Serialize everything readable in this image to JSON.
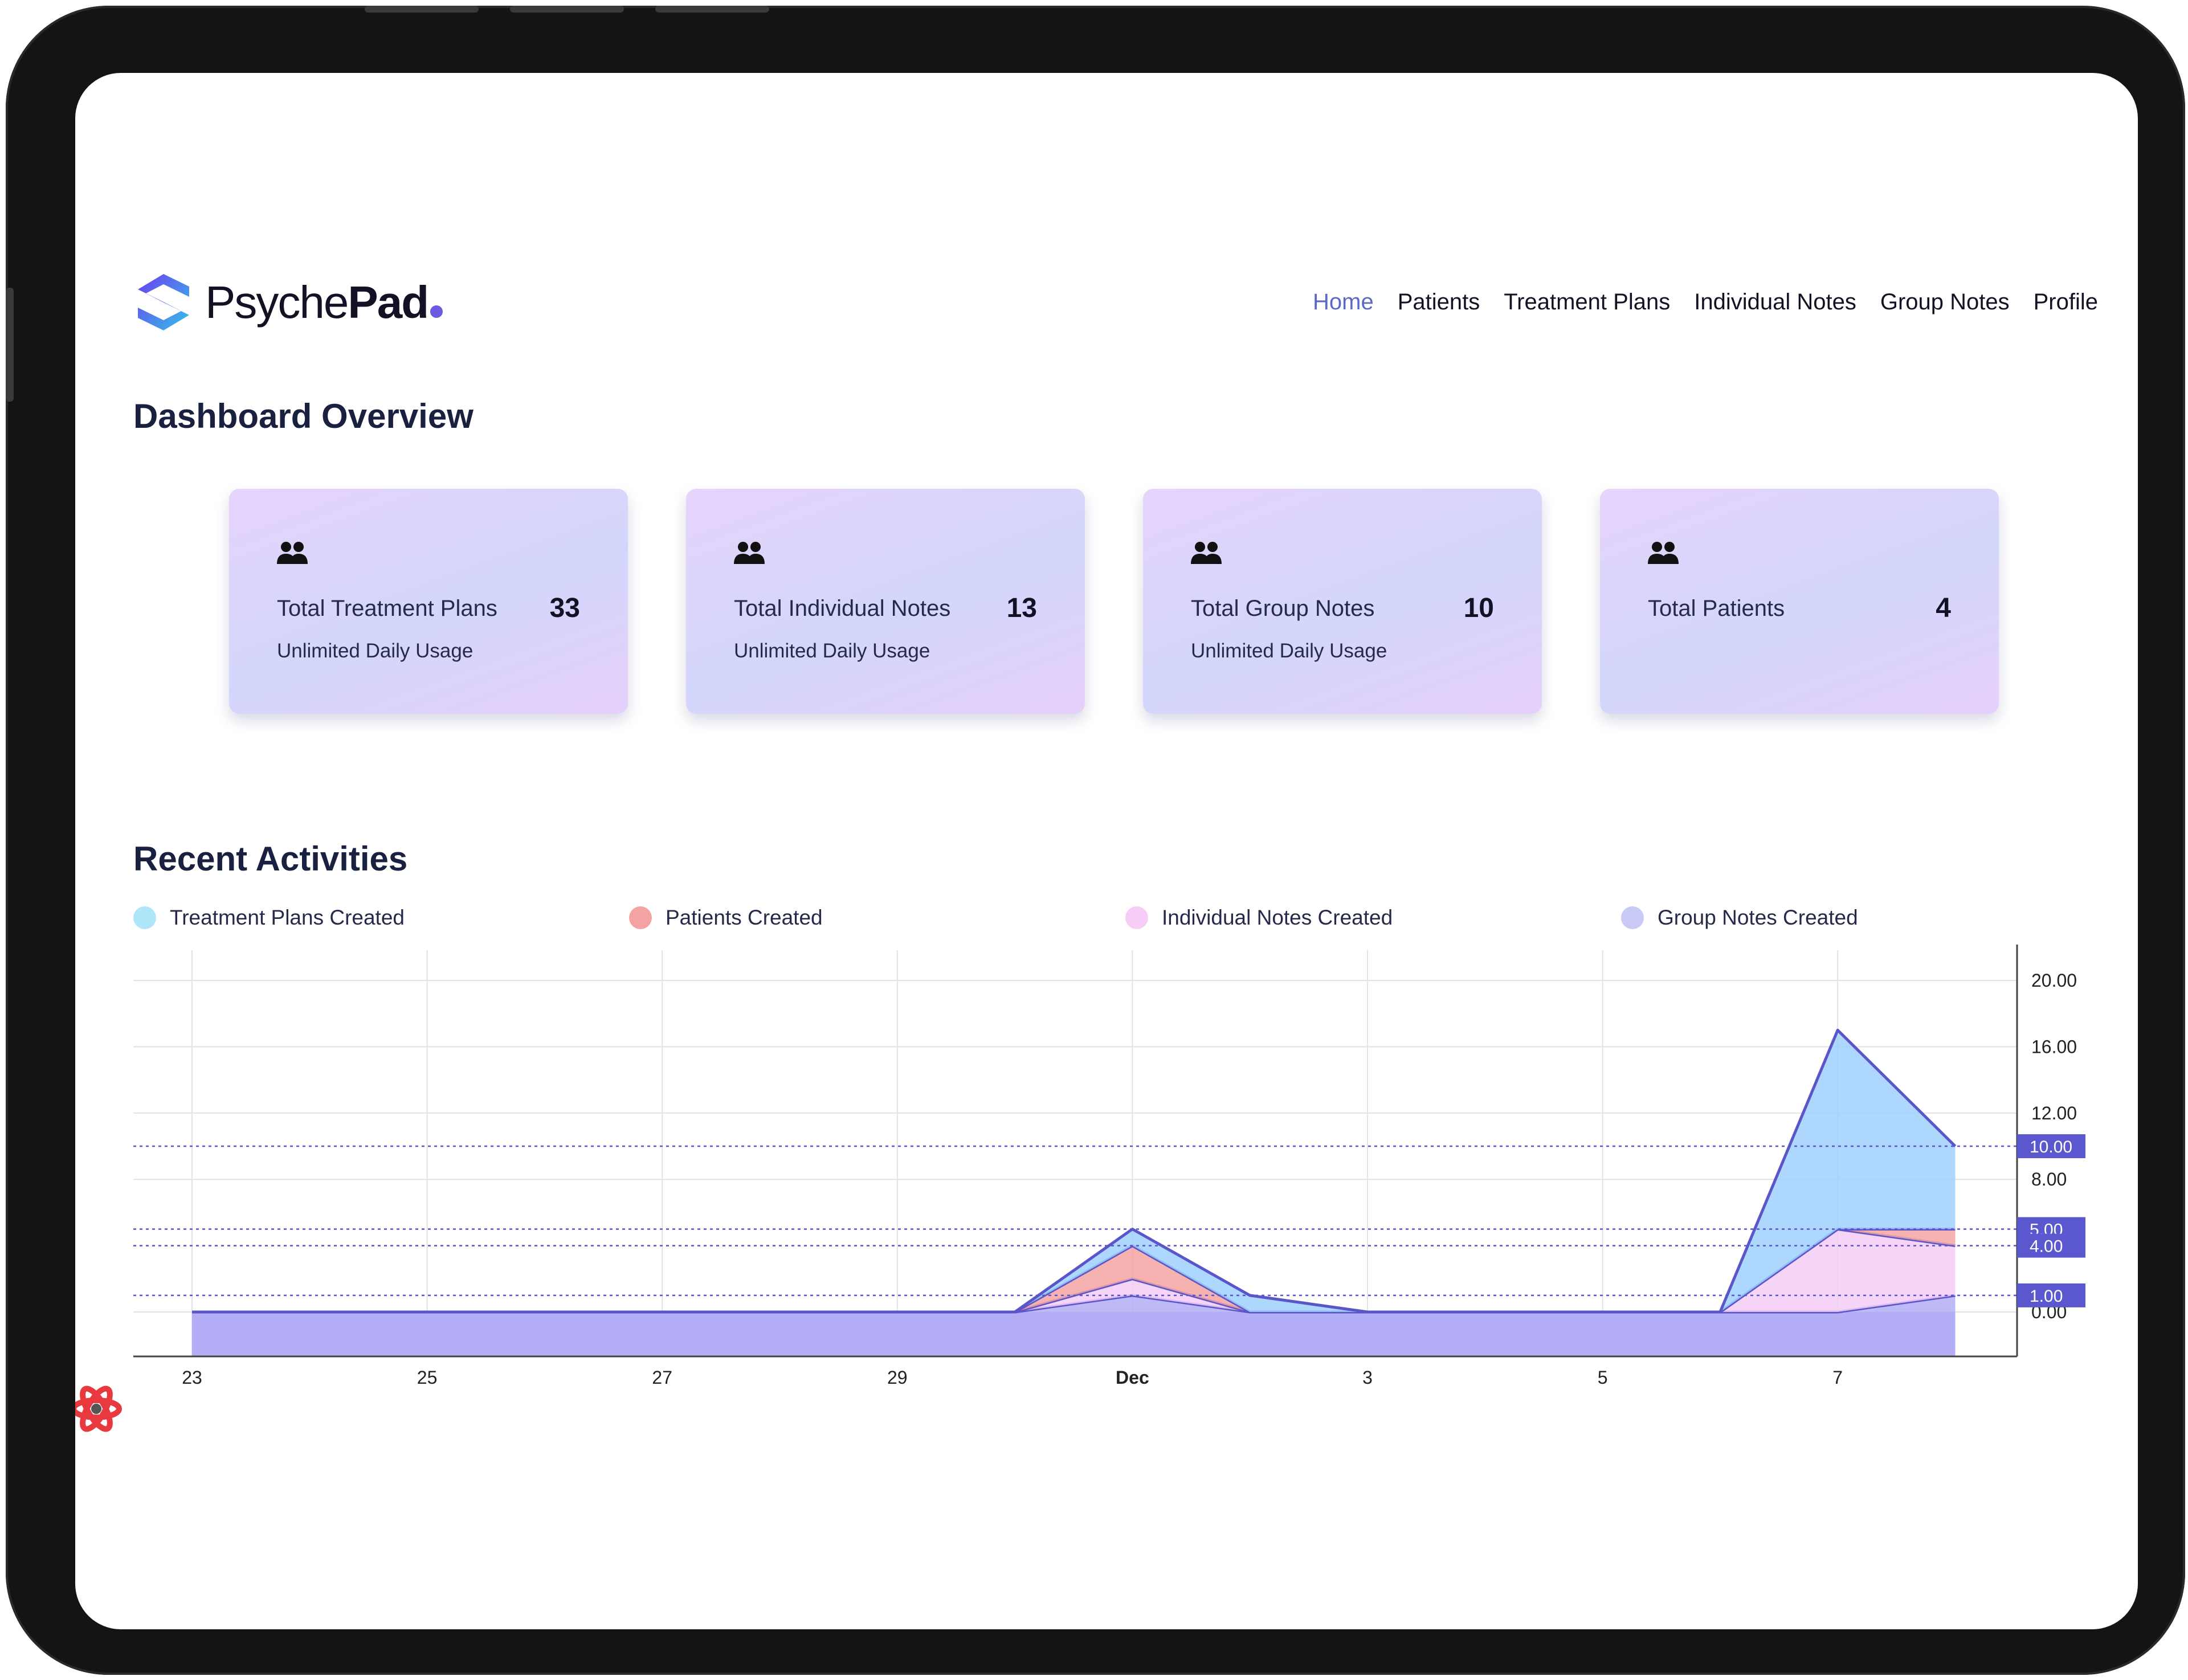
{
  "app": {
    "logo_light": "Psyche",
    "logo_bold": "Pad"
  },
  "nav": [
    {
      "label": "Home",
      "active": true
    },
    {
      "label": "Patients"
    },
    {
      "label": "Treatment Plans"
    },
    {
      "label": "Individual Notes"
    },
    {
      "label": "Group Notes"
    },
    {
      "label": "Profile"
    }
  ],
  "dashboard": {
    "title": "Dashboard Overview",
    "cards": [
      {
        "icon": "people-icon",
        "label": "Total Treatment Plans",
        "value": "33",
        "sub": "Unlimited Daily Usage"
      },
      {
        "icon": "people-icon",
        "label": "Total Individual Notes",
        "value": "13",
        "sub": "Unlimited Daily Usage"
      },
      {
        "icon": "people-icon",
        "label": "Total Group Notes",
        "value": "10",
        "sub": "Unlimited Daily Usage"
      },
      {
        "icon": "people-icon",
        "label": "Total Patients",
        "value": "4",
        "sub": ""
      }
    ]
  },
  "activities": {
    "title": "Recent Activities",
    "legend": [
      {
        "label": "Treatment Plans Created",
        "color": "#aee6fa"
      },
      {
        "label": "Patients Created",
        "color": "#f4a3a3"
      },
      {
        "label": "Individual Notes Created",
        "color": "#f5cdf6"
      },
      {
        "label": "Group Notes Created",
        "color": "#c9c9f5"
      }
    ]
  },
  "chart_data": {
    "type": "area",
    "stacked": true,
    "x": [
      "Nov 23",
      "Nov 24",
      "Nov 25",
      "Nov 26",
      "Nov 27",
      "Nov 28",
      "Nov 29",
      "Nov 30",
      "Dec 1",
      "Dec 2",
      "Dec 3",
      "Dec 4",
      "Dec 5",
      "Dec 6",
      "Dec 7",
      "Dec 8"
    ],
    "x_tick_labels": [
      {
        "x": "Nov 23",
        "label": "23",
        "bold": false
      },
      {
        "x": "Nov 25",
        "label": "25",
        "bold": false
      },
      {
        "x": "Nov 27",
        "label": "27",
        "bold": false
      },
      {
        "x": "Nov 29",
        "label": "29",
        "bold": false
      },
      {
        "x": "Dec 1",
        "label": "Dec",
        "bold": true
      },
      {
        "x": "Dec 3",
        "label": "3",
        "bold": false
      },
      {
        "x": "Dec 5",
        "label": "5",
        "bold": false
      },
      {
        "x": "Dec 7",
        "label": "7",
        "bold": false
      }
    ],
    "series": [
      {
        "name": "Group Notes Created",
        "color": "#b3aef6",
        "values": [
          0,
          0,
          0,
          0,
          0,
          0,
          0,
          0,
          1,
          0,
          0,
          0,
          0,
          0,
          0,
          1
        ]
      },
      {
        "name": "Individual Notes Created",
        "color": "#f5cdf6",
        "values": [
          0,
          0,
          0,
          0,
          0,
          0,
          0,
          0,
          1,
          0,
          0,
          0,
          0,
          0,
          5,
          3
        ]
      },
      {
        "name": "Patients Created",
        "color": "#f4a3a3",
        "values": [
          0,
          0,
          0,
          0,
          0,
          0,
          0,
          0,
          2,
          0,
          0,
          0,
          0,
          0,
          0,
          1
        ]
      },
      {
        "name": "Treatment Plans Created",
        "color": "#9fd0fb",
        "values": [
          0,
          0,
          0,
          0,
          0,
          0,
          0,
          0,
          1,
          1,
          0,
          0,
          0,
          0,
          12,
          5
        ]
      }
    ],
    "y_ticks": [
      "0.00",
      "8.00",
      "12.00",
      "16.00",
      "20.00"
    ],
    "y_value_badges": [
      "10.00",
      "5.00",
      "4.00",
      "1.00"
    ],
    "ylim": [
      0,
      20
    ],
    "y_axis_position": "right",
    "grid": true,
    "legend_position": "top"
  }
}
